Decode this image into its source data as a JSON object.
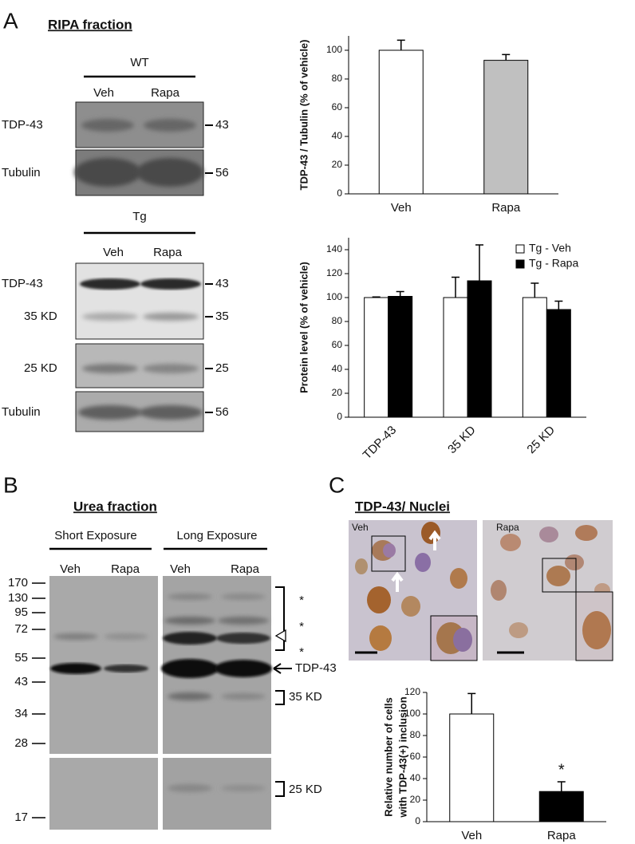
{
  "panel_labels": [
    "A",
    "B",
    "C"
  ],
  "ripa": {
    "title": "RIPA fraction",
    "wt": {
      "group": "WT",
      "lanes": [
        "Veh",
        "Rapa"
      ],
      "bands": [
        "TDP-43",
        "Tubulin"
      ],
      "markers": [
        "43",
        "56"
      ]
    },
    "tg": {
      "group": "Tg",
      "lanes": [
        "Veh",
        "Rapa"
      ],
      "bands": [
        "TDP-43",
        "35 KD",
        "25 KD",
        "Tubulin"
      ],
      "markers": [
        "43",
        "35",
        "25",
        "56"
      ]
    }
  },
  "urea": {
    "title": "Urea fraction",
    "exposures": [
      "Short Exposure",
      "Long Exposure"
    ],
    "lanes": [
      "Veh",
      "Rapa",
      "Veh",
      "Rapa"
    ],
    "ladder": [
      "170",
      "130",
      "95",
      "72",
      "55",
      "43",
      "34",
      "28",
      "17"
    ],
    "stars": [
      "*",
      "*",
      "*"
    ],
    "bands": [
      "TDP-43",
      "35 KD",
      "25 KD"
    ]
  },
  "ihc": {
    "title": "TDP-43/ Nuclei",
    "images": [
      "Veh",
      "Rapa"
    ]
  },
  "chart_data": [
    {
      "type": "bar",
      "ylabel": [
        "TDP-43 / Tubulin  (% of vehicle)"
      ],
      "categories": [
        "Veh",
        "Rapa"
      ],
      "series": [
        {
          "values": [
            100,
            93
          ],
          "errors": [
            7,
            4
          ],
          "colors": [
            "#ffffff",
            "#c0c0c0"
          ]
        }
      ],
      "ylim": [
        0,
        110
      ],
      "yticks": [
        0,
        20,
        40,
        60,
        80,
        100
      ]
    },
    {
      "type": "bar",
      "ylabel": [
        "Protein level (% of vehicle)"
      ],
      "categories": [
        "TDP-43",
        "35 KD",
        "25 KD"
      ],
      "series": [
        {
          "name": "Tg - Veh",
          "color": "#ffffff",
          "values": [
            100,
            100,
            100
          ],
          "errors": [
            0.5,
            17,
            12
          ]
        },
        {
          "name": "Tg - Rapa",
          "color": "#000000",
          "values": [
            101,
            114,
            90
          ],
          "errors": [
            4,
            30,
            7
          ]
        }
      ],
      "ylim": [
        0,
        150
      ],
      "yticks": [
        0,
        20,
        40,
        60,
        80,
        100,
        120,
        140
      ],
      "legend": "top-right"
    },
    {
      "type": "bar",
      "ylabel": [
        "Relative number of cells",
        "with TDP-43(+) inclusion"
      ],
      "categories": [
        "Veh",
        "Rapa"
      ],
      "series": [
        {
          "values": [
            100,
            28
          ],
          "errors": [
            19,
            9
          ],
          "colors": [
            "#ffffff",
            "#000000"
          ]
        }
      ],
      "ylim": [
        0,
        120
      ],
      "yticks": [
        0,
        20,
        40,
        60,
        80,
        100,
        120
      ],
      "annotations": [
        "*"
      ]
    }
  ]
}
